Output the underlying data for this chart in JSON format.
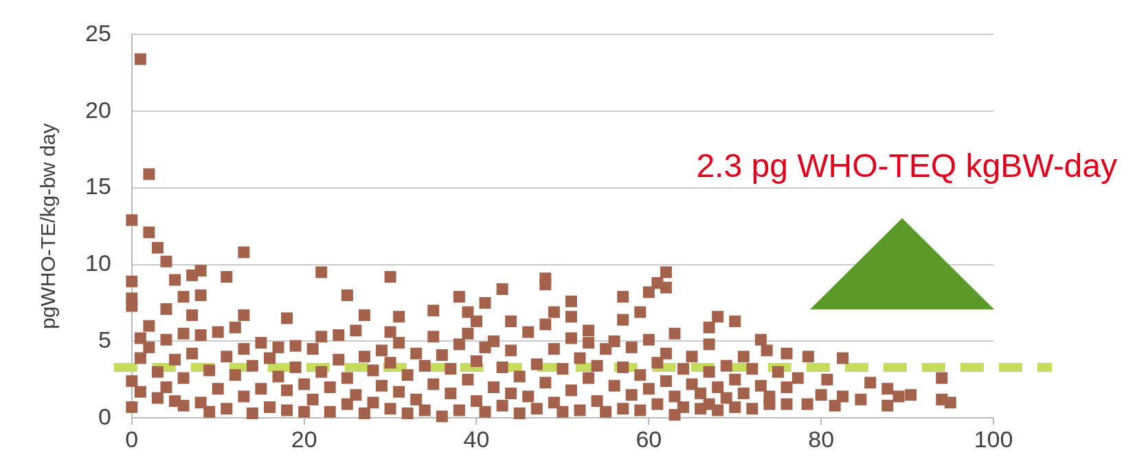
{
  "chart_data": {
    "type": "scatter",
    "ylabel": "pgWHO-TE/kg-bw day",
    "xlim": [
      0,
      100
    ],
    "xticks": [
      0,
      20,
      40,
      60,
      80,
      100
    ],
    "ylim": [
      0,
      25
    ],
    "yticks": [
      0,
      5,
      10,
      15,
      20,
      25
    ],
    "grid": "y",
    "legend": false,
    "marker": "square",
    "annotations": [
      "2.3 pg WHO-TEQ kgBW-day"
    ],
    "ref_lines": [
      {
        "axis": "y",
        "value": 3.3,
        "color": "#c5dc5c",
        "line_style": "dashed"
      }
    ],
    "series": [
      {
        "color": "#a5624a",
        "x": [
          1,
          2,
          0,
          2,
          3,
          4,
          13,
          11,
          8,
          7,
          22,
          5,
          0,
          0,
          0,
          6,
          8,
          25,
          4,
          13,
          7,
          18,
          27,
          0,
          1,
          0,
          30,
          48,
          48,
          62,
          62,
          61,
          60,
          57,
          43,
          38,
          41,
          51,
          35,
          31,
          59,
          57,
          44,
          51,
          53,
          63,
          68,
          70,
          67,
          67,
          73,
          30,
          40,
          39,
          49,
          82.5,
          78.5,
          76,
          73.7,
          94,
          94,
          95,
          90.4,
          87.7,
          87.7,
          85.7,
          84.6,
          81.6,
          80.7,
          77.3,
          78.4,
          74,
          80,
          82.5,
          89,
          1,
          1,
          2,
          2,
          3,
          3,
          4,
          4,
          5,
          5,
          6,
          6,
          6,
          7,
          8,
          8,
          9,
          9,
          10,
          10,
          11,
          11,
          12,
          12,
          13,
          13,
          14,
          14,
          15,
          15,
          16,
          16,
          17,
          17,
          18,
          18,
          19,
          19,
          20,
          20,
          21,
          21,
          22,
          22,
          23,
          23,
          24,
          24,
          25,
          25,
          26,
          26,
          27,
          27,
          28,
          28,
          29,
          29,
          30,
          30,
          31,
          31,
          32,
          32,
          33,
          33,
          34,
          34,
          35,
          35,
          36,
          36,
          37,
          37,
          38,
          38,
          39,
          39,
          40,
          40,
          41,
          41,
          42,
          42,
          43,
          43,
          44,
          44,
          45,
          45,
          46,
          46,
          47,
          47,
          48,
          48,
          49,
          49,
          50,
          50,
          51,
          51,
          52,
          52,
          53,
          53,
          54,
          54,
          55,
          55,
          56,
          56,
          57,
          57,
          58,
          58,
          59,
          59,
          60,
          60,
          61,
          61,
          62,
          62,
          63,
          63,
          64,
          64,
          65,
          65,
          66,
          66,
          67,
          67,
          68,
          68,
          69,
          69,
          70,
          70,
          71,
          71,
          72,
          72,
          73,
          74,
          75,
          76,
          76
        ],
        "values": [
          23.4,
          15.9,
          12.9,
          12.1,
          11.1,
          10.2,
          10.8,
          9.2,
          9.6,
          9.3,
          9.5,
          9.0,
          8.9,
          7.8,
          7.3,
          7.9,
          8.0,
          8.0,
          7.1,
          6.7,
          6.7,
          6.5,
          6.7,
          0.7,
          1.7,
          2.4,
          9.2,
          9.1,
          8.7,
          9.5,
          8.5,
          8.8,
          8.2,
          7.9,
          8.4,
          7.9,
          7.5,
          7.6,
          7.0,
          6.6,
          6.9,
          6.4,
          6.3,
          6.6,
          5.7,
          5.5,
          6.6,
          6.3,
          5.9,
          4.8,
          5.1,
          5.6,
          6.3,
          6.9,
          6.9,
          3.9,
          4.0,
          4.2,
          4.4,
          2.6,
          1.2,
          1.0,
          1.5,
          1.9,
          0.8,
          2.3,
          1.2,
          0.8,
          2.5,
          2.6,
          0.9,
          0.9,
          1.5,
          1.4,
          1.4,
          5.2,
          3.9,
          6.0,
          4.6,
          1.3,
          3.0,
          5.1,
          2.0,
          1.1,
          3.8,
          5.5,
          0.8,
          2.6,
          4.2,
          1.0,
          5.4,
          3.1,
          0.4,
          5.6,
          1.9,
          4.0,
          0.6,
          5.9,
          2.8,
          1.4,
          4.5,
          0.3,
          3.4,
          4.9,
          1.9,
          0.7,
          3.9,
          2.7,
          4.6,
          0.5,
          1.8,
          3.3,
          4.7,
          0.4,
          2.2,
          4.5,
          1.2,
          5.3,
          3.0,
          0.4,
          2.0,
          5.4,
          3.8,
          0.9,
          2.6,
          5.7,
          1.5,
          4.0,
          0.3,
          3.1,
          1.0,
          4.4,
          2.1,
          0.6,
          3.6,
          1.7,
          4.9,
          0.3,
          2.8,
          4.2,
          1.2,
          3.4,
          0.5,
          5.3,
          2.2,
          0.1,
          4.1,
          1.6,
          3.2,
          4.8,
          0.5,
          2.5,
          5.5,
          1.1,
          3.7,
          0.4,
          4.6,
          2.0,
          5.0,
          0.8,
          3.3,
          1.6,
          4.4,
          0.3,
          2.7,
          5.6,
          1.4,
          3.5,
          0.6,
          6.1,
          2.3,
          4.5,
          1.0,
          0.4,
          3.2,
          5.2,
          1.8,
          0.5,
          3.9,
          2.6,
          4.9,
          1.1,
          3.4,
          0.4,
          4.5,
          2.1,
          5.0,
          0.6,
          3.3,
          1.5,
          4.6,
          0.5,
          2.8,
          5.1,
          1.9,
          0.9,
          3.6,
          4.2,
          2.4,
          0.2,
          1.4,
          3.2,
          0.7,
          2.2,
          4.0,
          0.6,
          1.6,
          3.0,
          0.9,
          2.0,
          0.5,
          3.4,
          1.3,
          0.7,
          2.5,
          4.0,
          1.6,
          0.6,
          3.2,
          2.1,
          1.4,
          3.0,
          0.9,
          2.0
        ]
      }
    ]
  }
}
